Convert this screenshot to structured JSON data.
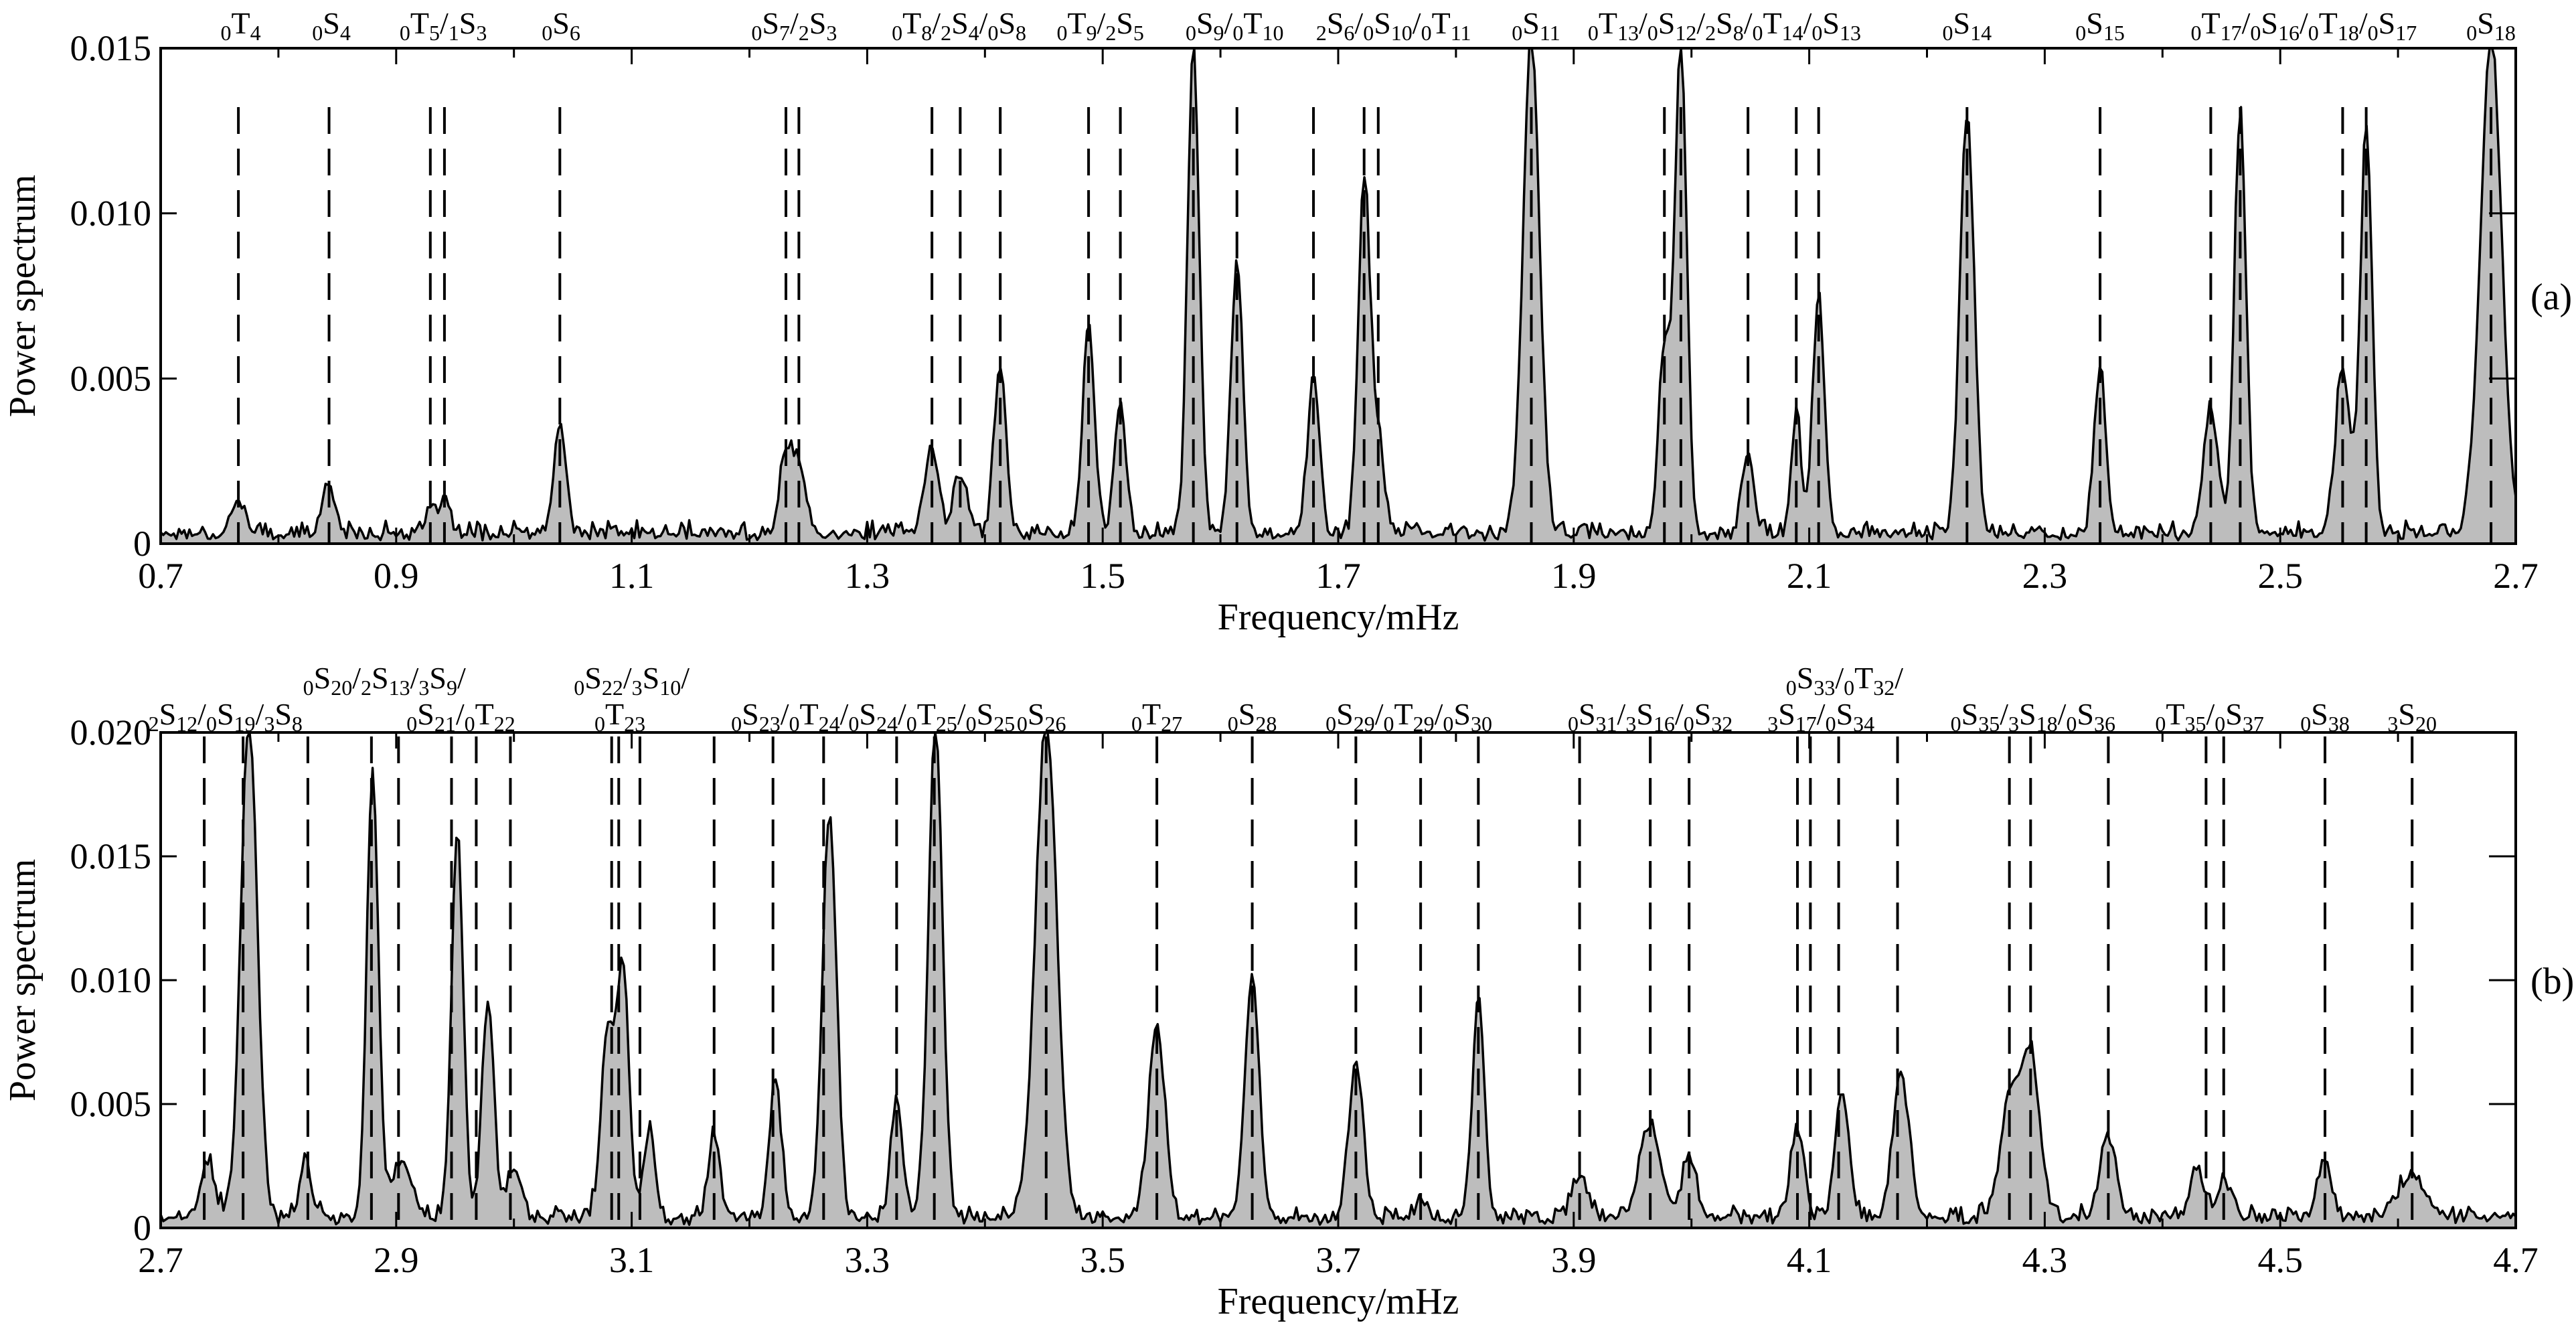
{
  "chart_data": [
    {
      "panel_label": "(a)",
      "type": "area",
      "xlabel": "Frequency/mHz",
      "ylabel": "Power spectrum",
      "xlim": [
        0.7,
        2.7
      ],
      "ylim": [
        0,
        0.015
      ],
      "x_ticks": [
        "0.7",
        "0.9",
        "1.1",
        "1.3",
        "1.5",
        "1.7",
        "1.9",
        "2.1",
        "2.3",
        "2.5",
        "2.7"
      ],
      "y_ticks": [
        "0",
        "0.005",
        "0.010",
        "0.015"
      ],
      "mode_lines": [
        0.766,
        0.843,
        0.929,
        0.941,
        1.039,
        1.231,
        1.242,
        1.355,
        1.379,
        1.413,
        1.488,
        1.515,
        1.577,
        1.614,
        1.679,
        1.722,
        1.734,
        1.864,
        1.977,
        1.991,
        2.048,
        2.089,
        2.108,
        2.234,
        2.347,
        2.441,
        2.466,
        2.553,
        2.573,
        2.679
      ],
      "mode_labels": [
        {
          "x": 0.768,
          "text": "0T4"
        },
        {
          "x": 0.845,
          "text": "0S4"
        },
        {
          "x": 0.94,
          "text": "0T5/1S3"
        },
        {
          "x": 1.04,
          "text": "0S6"
        },
        {
          "x": 1.238,
          "text": "0S7/2S3"
        },
        {
          "x": 1.378,
          "text": "0T8/2S4/0S8"
        },
        {
          "x": 1.498,
          "text": "0T9/2S5"
        },
        {
          "x": 1.612,
          "text": "0S9/0T10"
        },
        {
          "x": 1.747,
          "text": "2S6/0S10/0T11"
        },
        {
          "x": 1.868,
          "text": "0S11"
        },
        {
          "x": 2.028,
          "text": "0T13/0S12/2S8/0T14/0S13"
        },
        {
          "x": 2.234,
          "text": "0S14"
        },
        {
          "x": 2.347,
          "text": "0S15"
        },
        {
          "x": 2.52,
          "text": "0T17/0S16/0T18/0S17"
        },
        {
          "x": 2.679,
          "text": "0S18"
        }
      ],
      "peaks": [
        {
          "x": 0.766,
          "h": 0.0011,
          "w": 0.005
        },
        {
          "x": 0.843,
          "h": 0.0016,
          "w": 0.005
        },
        {
          "x": 0.929,
          "h": 0.0006,
          "w": 0.004
        },
        {
          "x": 0.941,
          "h": 0.0012,
          "w": 0.004
        },
        {
          "x": 1.039,
          "h": 0.0033,
          "w": 0.005
        },
        {
          "x": 1.231,
          "h": 0.0024,
          "w": 0.005
        },
        {
          "x": 1.242,
          "h": 0.0022,
          "w": 0.005
        },
        {
          "x": 1.355,
          "h": 0.0026,
          "w": 0.006
        },
        {
          "x": 1.379,
          "h": 0.0019,
          "w": 0.005
        },
        {
          "x": 1.413,
          "h": 0.0052,
          "w": 0.005
        },
        {
          "x": 1.488,
          "h": 0.0063,
          "w": 0.005
        },
        {
          "x": 1.515,
          "h": 0.0038,
          "w": 0.005
        },
        {
          "x": 1.577,
          "h": 0.0148,
          "w": 0.005
        },
        {
          "x": 1.614,
          "h": 0.0083,
          "w": 0.005
        },
        {
          "x": 1.679,
          "h": 0.0047,
          "w": 0.005
        },
        {
          "x": 1.722,
          "h": 0.0107,
          "w": 0.005
        },
        {
          "x": 1.734,
          "h": 0.0029,
          "w": 0.005
        },
        {
          "x": 1.864,
          "h": 0.015,
          "w": 0.007
        },
        {
          "x": 1.977,
          "h": 0.0057,
          "w": 0.005
        },
        {
          "x": 1.991,
          "h": 0.0148,
          "w": 0.005
        },
        {
          "x": 2.048,
          "h": 0.0023,
          "w": 0.005
        },
        {
          "x": 2.089,
          "h": 0.0037,
          "w": 0.004
        },
        {
          "x": 2.108,
          "h": 0.0071,
          "w": 0.005
        },
        {
          "x": 2.234,
          "h": 0.0127,
          "w": 0.006
        },
        {
          "x": 2.347,
          "h": 0.0049,
          "w": 0.005
        },
        {
          "x": 2.441,
          "h": 0.0038,
          "w": 0.006
        },
        {
          "x": 2.466,
          "h": 0.0128,
          "w": 0.005
        },
        {
          "x": 2.553,
          "h": 0.005,
          "w": 0.006
        },
        {
          "x": 2.573,
          "h": 0.0123,
          "w": 0.005
        },
        {
          "x": 2.679,
          "h": 0.015,
          "w": 0.009
        }
      ]
    },
    {
      "panel_label": "(b)",
      "type": "area",
      "xlabel": "Frequency/mHz",
      "ylabel": "Power spectrum",
      "xlim": [
        2.7,
        4.7
      ],
      "ylim": [
        0,
        0.02
      ],
      "x_ticks": [
        "2.7",
        "2.9",
        "3.1",
        "3.3",
        "3.5",
        "3.7",
        "3.9",
        "4.1",
        "4.3",
        "4.5",
        "4.7"
      ],
      "y_ticks": [
        "0",
        "0.005",
        "0.010",
        "0.015",
        "0.020"
      ],
      "mode_lines": [
        2.737,
        2.77,
        2.825,
        2.879,
        2.902,
        2.947,
        2.968,
        2.997,
        3.083,
        3.089,
        3.107,
        3.17,
        3.22,
        3.263,
        3.325,
        3.357,
        3.452,
        3.546,
        3.627,
        3.715,
        3.77,
        3.819,
        3.905,
        3.965,
        3.998,
        4.09,
        4.101,
        4.125,
        4.175,
        4.27,
        4.288,
        4.354,
        4.437,
        4.452,
        4.538,
        4.612
      ],
      "mode_labels": [
        {
          "x": 2.755,
          "text": "2S12/0S19/3S8",
          "row": "lower"
        },
        {
          "x": 2.89,
          "text": "0S20/2S13/3S9/",
          "row": "upper"
        },
        {
          "x": 2.955,
          "text": "0S21/0T22",
          "row": "lower"
        },
        {
          "x": 3.1,
          "text": "0S22/3S10/",
          "row": "upper"
        },
        {
          "x": 3.09,
          "text": "0T23",
          "row": "lower"
        },
        {
          "x": 3.305,
          "text": "0S23/0T24/0S24/0T25/0S25",
          "row": "lower"
        },
        {
          "x": 3.448,
          "text": "0S26",
          "row": "lower"
        },
        {
          "x": 3.546,
          "text": "0T27",
          "row": "lower"
        },
        {
          "x": 3.627,
          "text": "0S28",
          "row": "lower"
        },
        {
          "x": 3.76,
          "text": "0S29/0T29/0S30",
          "row": "lower"
        },
        {
          "x": 3.965,
          "text": "0S31/3S16/0S32",
          "row": "lower"
        },
        {
          "x": 4.13,
          "text": "0S33/0T32/",
          "row": "upper"
        },
        {
          "x": 4.11,
          "text": "3S17/0S34",
          "row": "lower"
        },
        {
          "x": 4.29,
          "text": "0S35/3S18/0S36",
          "row": "lower"
        },
        {
          "x": 4.44,
          "text": "0T35/0S37",
          "row": "lower"
        },
        {
          "x": 4.538,
          "text": "0S38",
          "row": "lower"
        },
        {
          "x": 4.612,
          "text": "3S20",
          "row": "lower"
        }
      ],
      "peaks": [
        {
          "x": 2.74,
          "h": 0.0022,
          "w": 0.006
        },
        {
          "x": 2.775,
          "h": 0.02,
          "w": 0.007
        },
        {
          "x": 2.823,
          "h": 0.0024,
          "w": 0.005
        },
        {
          "x": 2.88,
          "h": 0.0178,
          "w": 0.005
        },
        {
          "x": 2.905,
          "h": 0.0024,
          "w": 0.008
        },
        {
          "x": 2.952,
          "h": 0.0153,
          "w": 0.005
        },
        {
          "x": 2.978,
          "h": 0.0089,
          "w": 0.005
        },
        {
          "x": 3.0,
          "h": 0.002,
          "w": 0.006
        },
        {
          "x": 3.08,
          "h": 0.0075,
          "w": 0.006
        },
        {
          "x": 3.093,
          "h": 0.0095,
          "w": 0.005
        },
        {
          "x": 3.115,
          "h": 0.0034,
          "w": 0.005
        },
        {
          "x": 3.17,
          "h": 0.0035,
          "w": 0.005
        },
        {
          "x": 3.222,
          "h": 0.0056,
          "w": 0.005
        },
        {
          "x": 3.268,
          "h": 0.0162,
          "w": 0.006
        },
        {
          "x": 3.325,
          "h": 0.0047,
          "w": 0.005
        },
        {
          "x": 3.358,
          "h": 0.02,
          "w": 0.006
        },
        {
          "x": 3.452,
          "h": 0.02,
          "w": 0.009
        },
        {
          "x": 3.546,
          "h": 0.0077,
          "w": 0.007
        },
        {
          "x": 3.627,
          "h": 0.0098,
          "w": 0.006
        },
        {
          "x": 3.715,
          "h": 0.0062,
          "w": 0.006
        },
        {
          "x": 3.77,
          "h": 0.001,
          "w": 0.004
        },
        {
          "x": 3.819,
          "h": 0.0091,
          "w": 0.005
        },
        {
          "x": 3.905,
          "h": 0.0018,
          "w": 0.006
        },
        {
          "x": 3.965,
          "h": 0.0037,
          "w": 0.009
        },
        {
          "x": 3.998,
          "h": 0.0025,
          "w": 0.006
        },
        {
          "x": 4.09,
          "h": 0.0036,
          "w": 0.006
        },
        {
          "x": 4.128,
          "h": 0.0051,
          "w": 0.006
        },
        {
          "x": 4.178,
          "h": 0.0057,
          "w": 0.007
        },
        {
          "x": 4.27,
          "h": 0.0046,
          "w": 0.008
        },
        {
          "x": 4.288,
          "h": 0.0064,
          "w": 0.008
        },
        {
          "x": 4.354,
          "h": 0.0032,
          "w": 0.007
        },
        {
          "x": 4.43,
          "h": 0.0018,
          "w": 0.006
        },
        {
          "x": 4.452,
          "h": 0.0015,
          "w": 0.006
        },
        {
          "x": 4.538,
          "h": 0.0023,
          "w": 0.006
        },
        {
          "x": 4.612,
          "h": 0.0017,
          "w": 0.012
        }
      ]
    }
  ]
}
